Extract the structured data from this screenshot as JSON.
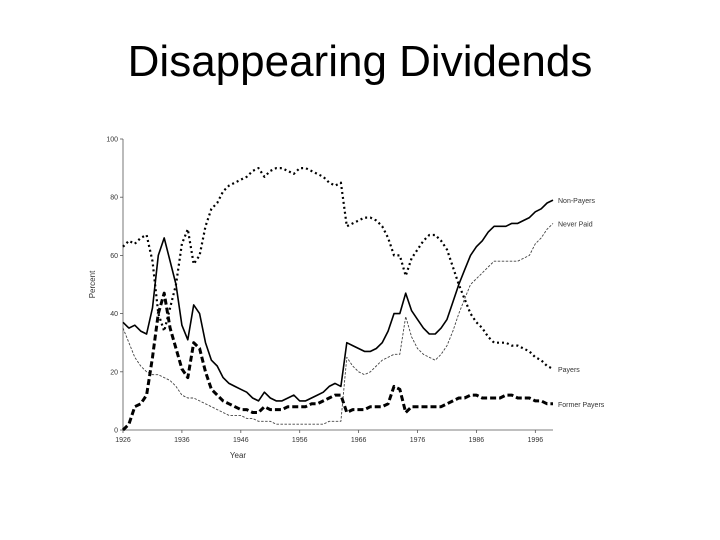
{
  "slide": {
    "title": "Disappearing Dividends"
  },
  "chart_data": {
    "type": "line",
    "title": "Disappearing Dividends",
    "xlabel": "Year",
    "ylabel": "Percent",
    "xlim": [
      1926,
      1999
    ],
    "ylim": [
      0,
      100
    ],
    "x_ticks": [
      1926,
      1936,
      1946,
      1956,
      1966,
      1976,
      1986,
      1996
    ],
    "x_tick_labels": [
      "1926",
      "1936",
      "1946",
      "1956",
      "1966",
      "1976",
      "1986",
      "1996"
    ],
    "y_ticks": [
      0,
      20,
      40,
      60,
      80,
      100
    ],
    "y_tick_labels": [
      "0",
      "20",
      "40",
      "60",
      "80",
      "100"
    ],
    "grid": false,
    "legend": "labels at line ends (right)",
    "series": [
      {
        "name": "Non-Payers",
        "style": "solid",
        "color": "#000000",
        "x": [
          1926,
          1927,
          1928,
          1929,
          1930,
          1931,
          1932,
          1933,
          1934,
          1935,
          1936,
          1937,
          1938,
          1939,
          1940,
          1941,
          1942,
          1943,
          1944,
          1945,
          1946,
          1947,
          1948,
          1949,
          1950,
          1951,
          1952,
          1953,
          1954,
          1955,
          1956,
          1957,
          1958,
          1959,
          1960,
          1961,
          1962,
          1963,
          1964,
          1965,
          1966,
          1967,
          1968,
          1969,
          1970,
          1971,
          1972,
          1973,
          1974,
          1975,
          1976,
          1977,
          1978,
          1979,
          1980,
          1981,
          1982,
          1983,
          1984,
          1985,
          1986,
          1987,
          1988,
          1989,
          1990,
          1991,
          1992,
          1993,
          1994,
          1995,
          1996,
          1997,
          1998,
          1999
        ],
        "values": [
          37,
          35,
          36,
          34,
          33,
          42,
          60,
          66,
          58,
          50,
          36,
          31,
          43,
          40,
          30,
          24,
          22,
          18,
          16,
          15,
          14,
          13,
          11,
          10,
          13,
          11,
          10,
          10,
          11,
          12,
          10,
          10,
          11,
          12,
          13,
          15,
          16,
          15,
          30,
          29,
          28,
          27,
          27,
          28,
          30,
          34,
          40,
          40,
          47,
          41,
          38,
          35,
          33,
          33,
          35,
          38,
          44,
          50,
          55,
          60,
          63,
          65,
          68,
          70,
          70,
          70,
          71,
          71,
          72,
          73,
          75,
          76,
          78,
          79
        ]
      },
      {
        "name": "Never Paid",
        "style": "dashed-fine",
        "color": "#444444",
        "x": [
          1926,
          1927,
          1928,
          1929,
          1930,
          1931,
          1932,
          1933,
          1934,
          1935,
          1936,
          1937,
          1938,
          1939,
          1940,
          1941,
          1942,
          1943,
          1944,
          1945,
          1946,
          1947,
          1948,
          1949,
          1950,
          1951,
          1952,
          1953,
          1954,
          1955,
          1956,
          1957,
          1958,
          1959,
          1960,
          1961,
          1962,
          1963,
          1964,
          1965,
          1966,
          1967,
          1968,
          1969,
          1970,
          1971,
          1972,
          1973,
          1974,
          1975,
          1976,
          1977,
          1978,
          1979,
          1980,
          1981,
          1982,
          1983,
          1984,
          1985,
          1986,
          1987,
          1988,
          1989,
          1990,
          1991,
          1992,
          1993,
          1994,
          1995,
          1996,
          1997,
          1998,
          1999
        ],
        "values": [
          35,
          30,
          25,
          22,
          20,
          19,
          19,
          18,
          17,
          15,
          12,
          11,
          11,
          10,
          9,
          8,
          7,
          6,
          5,
          5,
          5,
          4,
          4,
          3,
          3,
          3,
          2,
          2,
          2,
          2,
          2,
          2,
          2,
          2,
          2,
          3,
          3,
          3,
          25,
          22,
          20,
          19,
          20,
          22,
          24,
          25,
          26,
          26,
          39,
          32,
          28,
          26,
          25,
          24,
          26,
          29,
          34,
          40,
          45,
          50,
          52,
          54,
          56,
          58,
          58,
          58,
          58,
          58,
          59,
          60,
          64,
          66,
          69,
          71
        ]
      },
      {
        "name": "Payers",
        "style": "dotted-coarse",
        "color": "#000000",
        "x": [
          1926,
          1927,
          1928,
          1929,
          1930,
          1931,
          1932,
          1933,
          1934,
          1935,
          1936,
          1937,
          1938,
          1939,
          1940,
          1941,
          1942,
          1943,
          1944,
          1945,
          1946,
          1947,
          1948,
          1949,
          1950,
          1951,
          1952,
          1953,
          1954,
          1955,
          1956,
          1957,
          1958,
          1959,
          1960,
          1961,
          1962,
          1963,
          1964,
          1965,
          1966,
          1967,
          1968,
          1969,
          1970,
          1971,
          1972,
          1973,
          1974,
          1975,
          1976,
          1977,
          1978,
          1979,
          1980,
          1981,
          1982,
          1983,
          1984,
          1985,
          1986,
          1987,
          1988,
          1989,
          1990,
          1991,
          1992,
          1993,
          1994,
          1995,
          1996,
          1997,
          1998,
          1999
        ],
        "values": [
          63,
          65,
          64,
          66,
          67,
          58,
          40,
          34,
          42,
          50,
          64,
          69,
          57,
          60,
          70,
          76,
          78,
          82,
          84,
          85,
          86,
          87,
          89,
          90,
          87,
          89,
          90,
          90,
          89,
          88,
          90,
          90,
          89,
          88,
          87,
          85,
          84,
          85,
          70,
          71,
          72,
          73,
          73,
          72,
          70,
          66,
          60,
          60,
          53,
          59,
          62,
          65,
          67,
          67,
          65,
          62,
          56,
          50,
          45,
          40,
          37,
          35,
          32,
          30,
          30,
          30,
          29,
          29,
          28,
          27,
          25,
          24,
          22,
          21
        ]
      },
      {
        "name": "Former Payers",
        "style": "dashed-bold",
        "color": "#000000",
        "x": [
          1926,
          1927,
          1928,
          1929,
          1930,
          1931,
          1932,
          1933,
          1934,
          1935,
          1936,
          1937,
          1938,
          1939,
          1940,
          1941,
          1942,
          1943,
          1944,
          1945,
          1946,
          1947,
          1948,
          1949,
          1950,
          1951,
          1952,
          1953,
          1954,
          1955,
          1956,
          1957,
          1958,
          1959,
          1960,
          1961,
          1962,
          1963,
          1964,
          1965,
          1966,
          1967,
          1968,
          1969,
          1970,
          1971,
          1972,
          1973,
          1974,
          1975,
          1976,
          1977,
          1978,
          1979,
          1980,
          1981,
          1982,
          1983,
          1984,
          1985,
          1986,
          1987,
          1988,
          1989,
          1990,
          1991,
          1992,
          1993,
          1994,
          1995,
          1996,
          1997,
          1998,
          1999
        ],
        "values": [
          0,
          2,
          8,
          9,
          12,
          25,
          40,
          47,
          35,
          28,
          21,
          18,
          30,
          28,
          20,
          14,
          12,
          10,
          9,
          8,
          7,
          7,
          6,
          6,
          8,
          7,
          7,
          7,
          8,
          8,
          8,
          8,
          9,
          9,
          10,
          11,
          12,
          12,
          6,
          7,
          7,
          7,
          8,
          8,
          8,
          9,
          15,
          14,
          6,
          8,
          8,
          8,
          8,
          8,
          8,
          9,
          10,
          11,
          11,
          12,
          12,
          11,
          11,
          11,
          11,
          12,
          12,
          11,
          11,
          11,
          10,
          10,
          9,
          9
        ]
      }
    ]
  }
}
